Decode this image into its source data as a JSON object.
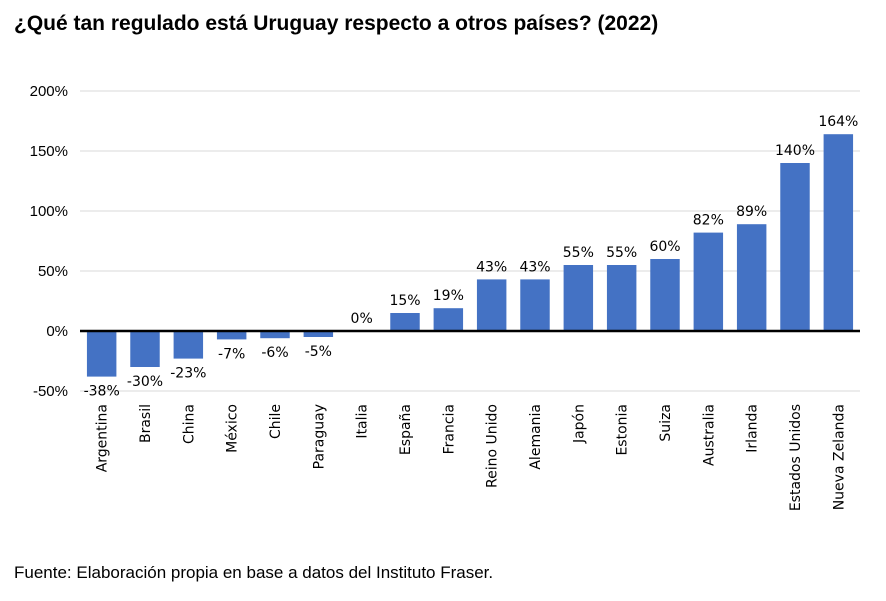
{
  "title": "¿Qué tan regulado está Uruguay respecto a otros países? (2022)",
  "source": "Fuente: Elaboración propia en base a datos del Instituto Fraser.",
  "chart_data": {
    "type": "bar",
    "categories": [
      "Argentina",
      "Brasil",
      "China",
      "México",
      "Chile",
      "Paraguay",
      "Italia",
      "España",
      "Francia",
      "Reino Unido",
      "Alemania",
      "Japón",
      "Estonia",
      "Suiza",
      "Australia",
      "Irlanda",
      "Estados Unidos",
      "Nueva Zelanda"
    ],
    "values": [
      -38,
      -30,
      -23,
      -7,
      -6,
      -5,
      0,
      15,
      19,
      43,
      43,
      55,
      55,
      60,
      82,
      89,
      140,
      164
    ],
    "data_labels": [
      "-38%",
      "-30%",
      "-23%",
      "-7%",
      "-6%",
      "-5%",
      "0%",
      "15%",
      "19%",
      "43%",
      "43%",
      "55%",
      "55%",
      "60%",
      "82%",
      "89%",
      "140%",
      "164%"
    ],
    "y_ticks": [
      -50,
      0,
      50,
      100,
      150,
      200
    ],
    "y_tick_labels": [
      "-50%",
      "0%",
      "50%",
      "100%",
      "150%",
      "200%"
    ],
    "ylim": [
      -50,
      200
    ],
    "grid": true,
    "bar_color": "#4472C4",
    "grid_color": "#D9D9D9",
    "axis_color": "#000000"
  }
}
